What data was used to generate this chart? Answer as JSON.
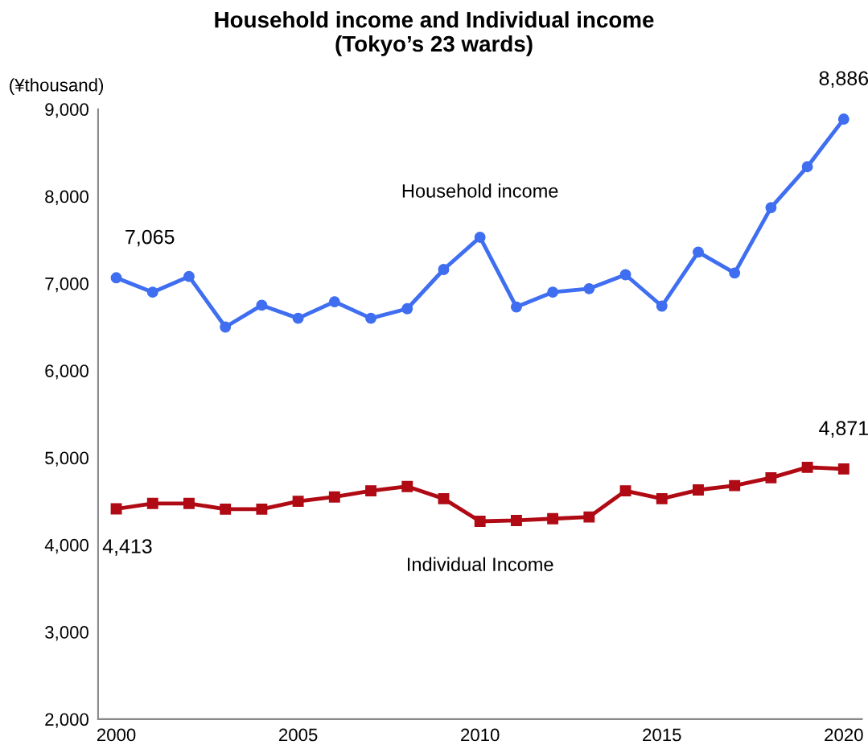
{
  "chart_data": {
    "type": "line",
    "title": "Household income and Individual income\n(Tokyo’s 23 wards)",
    "ylabel": "(¥thousand)",
    "x": [
      2000,
      2001,
      2002,
      2003,
      2004,
      2005,
      2006,
      2007,
      2008,
      2009,
      2010,
      2011,
      2012,
      2013,
      2014,
      2015,
      2016,
      2017,
      2018,
      2019,
      2020
    ],
    "series": [
      {
        "name": "Household income",
        "color": "#3f6ef0",
        "marker": "circle",
        "values": [
          7065,
          6900,
          7080,
          6500,
          6750,
          6600,
          6790,
          6600,
          6710,
          7160,
          7530,
          6730,
          6900,
          6940,
          7100,
          6740,
          7360,
          7120,
          7870,
          8340,
          8886
        ],
        "value_labels": [
          "7,065",
          null,
          null,
          null,
          null,
          null,
          null,
          null,
          null,
          null,
          null,
          null,
          null,
          null,
          null,
          null,
          null,
          null,
          null,
          null,
          "8,886"
        ]
      },
      {
        "name": "Individual Income",
        "color": "#b00a14",
        "marker": "square",
        "values": [
          4413,
          4475,
          4475,
          4410,
          4410,
          4500,
          4550,
          4620,
          4670,
          4530,
          4270,
          4280,
          4300,
          4320,
          4620,
          4530,
          4630,
          4680,
          4770,
          4890,
          4871
        ],
        "value_labels": [
          "4,413",
          null,
          null,
          null,
          null,
          null,
          null,
          null,
          null,
          null,
          null,
          null,
          null,
          null,
          null,
          null,
          null,
          null,
          null,
          null,
          "4,871"
        ]
      }
    ],
    "xlim": [
      1999.5,
      2020.5
    ],
    "xticks": [
      2000,
      2005,
      2010,
      2015,
      2020
    ],
    "ylim": [
      2000,
      9000
    ],
    "yticks": [
      {
        "value": 2000,
        "label": "2,000"
      },
      {
        "value": 3000,
        "label": "3,000"
      },
      {
        "value": 4000,
        "label": "4,000"
      },
      {
        "value": 5000,
        "label": "5,000"
      },
      {
        "value": 6000,
        "label": "6,000"
      },
      {
        "value": 7000,
        "label": "7,000"
      },
      {
        "value": 8000,
        "label": "8,000"
      },
      {
        "value": 9000,
        "label": "9,000"
      }
    ],
    "grid": false,
    "legend": false,
    "line_style": "solid"
  }
}
